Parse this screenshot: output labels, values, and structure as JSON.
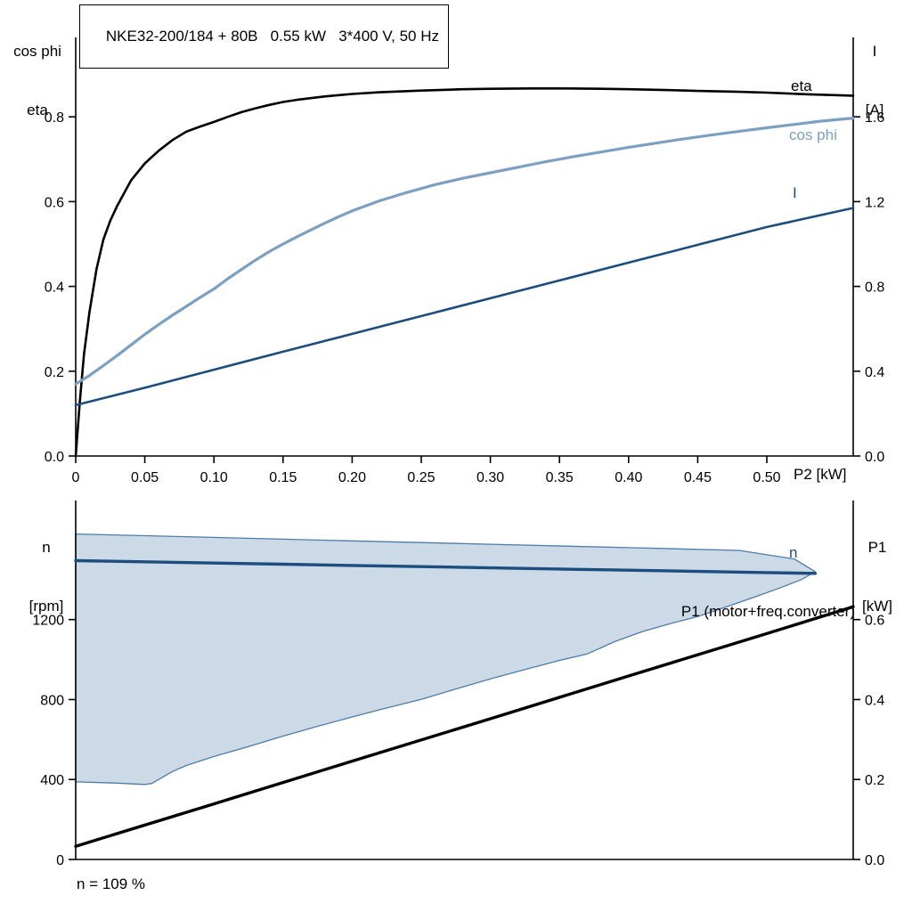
{
  "title_box": {
    "text": "NKE32-200/184 + 80B   0.55 kW   3*400 V, 50 Hz"
  },
  "chart_data": [
    {
      "type": "line",
      "title": "NKE32-200/184 + 80B   0.55 kW   3*400 V, 50 Hz",
      "xlabel": "P2 [kW]",
      "ylabel_left": {
        "line1": "cos phi",
        "line2": "eta"
      },
      "ylabel_right": {
        "line1": "I",
        "line2": "[A]"
      },
      "xlim": [
        0,
        0.5625
      ],
      "xticks": [
        0,
        0.05,
        0.1,
        0.15,
        0.2,
        0.25,
        0.3,
        0.35,
        0.4,
        0.45,
        0.5
      ],
      "xtick_labels": [
        "0",
        "0.05",
        "0.10",
        "0.15",
        "0.20",
        "0.25",
        "0.30",
        "0.35",
        "0.40",
        "0.45",
        "0.50"
      ],
      "ylim_left": [
        0,
        0.96
      ],
      "yticks_left": [
        0.0,
        0.2,
        0.4,
        0.6,
        0.8
      ],
      "ytick_labels_left": [
        "0.0",
        "0.2",
        "0.4",
        "0.6",
        "0.8"
      ],
      "ylim_right": [
        0,
        1.92
      ],
      "yticks_right": [
        0.0,
        0.4,
        0.8,
        1.2,
        1.6
      ],
      "ytick_labels_right": [
        "0.0",
        "0.4",
        "0.8",
        "1.2",
        "1.6"
      ],
      "grid": false,
      "series": [
        {
          "name": "eta",
          "label": "eta",
          "axis": "left",
          "color": "#000000",
          "width": 2.6,
          "points": [
            [
              0,
              0
            ],
            [
              0.003,
              0.13
            ],
            [
              0.006,
              0.24
            ],
            [
              0.01,
              0.34
            ],
            [
              0.015,
              0.44
            ],
            [
              0.02,
              0.51
            ],
            [
              0.025,
              0.555
            ],
            [
              0.03,
              0.59
            ],
            [
              0.04,
              0.65
            ],
            [
              0.05,
              0.69
            ],
            [
              0.06,
              0.72
            ],
            [
              0.07,
              0.745
            ],
            [
              0.08,
              0.765
            ],
            [
              0.09,
              0.777
            ],
            [
              0.1,
              0.788
            ],
            [
              0.11,
              0.8
            ],
            [
              0.12,
              0.811
            ],
            [
              0.13,
              0.82
            ],
            [
              0.14,
              0.828
            ],
            [
              0.15,
              0.835
            ],
            [
              0.16,
              0.84
            ],
            [
              0.18,
              0.848
            ],
            [
              0.2,
              0.854
            ],
            [
              0.22,
              0.858
            ],
            [
              0.25,
              0.862
            ],
            [
              0.28,
              0.865
            ],
            [
              0.3,
              0.866
            ],
            [
              0.33,
              0.867
            ],
            [
              0.35,
              0.867
            ],
            [
              0.38,
              0.866
            ],
            [
              0.4,
              0.865
            ],
            [
              0.43,
              0.863
            ],
            [
              0.45,
              0.861
            ],
            [
              0.48,
              0.859
            ],
            [
              0.5,
              0.857
            ],
            [
              0.53,
              0.853
            ],
            [
              0.5625,
              0.85
            ]
          ]
        },
        {
          "name": "cos phi",
          "label": "cos phi",
          "axis": "left",
          "color": "#7da0c0",
          "width": 3.2,
          "points": [
            [
              0,
              0.17
            ],
            [
              0.01,
              0.19
            ],
            [
              0.02,
              0.213
            ],
            [
              0.03,
              0.237
            ],
            [
              0.04,
              0.262
            ],
            [
              0.05,
              0.287
            ],
            [
              0.06,
              0.31
            ],
            [
              0.07,
              0.332
            ],
            [
              0.08,
              0.353
            ],
            [
              0.09,
              0.374
            ],
            [
              0.1,
              0.394
            ],
            [
              0.11,
              0.418
            ],
            [
              0.12,
              0.44
            ],
            [
              0.13,
              0.462
            ],
            [
              0.14,
              0.482
            ],
            [
              0.15,
              0.5
            ],
            [
              0.16,
              0.517
            ],
            [
              0.17,
              0.533
            ],
            [
              0.18,
              0.549
            ],
            [
              0.19,
              0.564
            ],
            [
              0.2,
              0.578
            ],
            [
              0.22,
              0.602
            ],
            [
              0.24,
              0.622
            ],
            [
              0.26,
              0.64
            ],
            [
              0.28,
              0.655
            ],
            [
              0.3,
              0.668
            ],
            [
              0.32,
              0.681
            ],
            [
              0.34,
              0.694
            ],
            [
              0.36,
              0.706
            ],
            [
              0.38,
              0.717
            ],
            [
              0.4,
              0.728
            ],
            [
              0.42,
              0.738
            ],
            [
              0.44,
              0.748
            ],
            [
              0.46,
              0.757
            ],
            [
              0.48,
              0.766
            ],
            [
              0.5,
              0.774
            ],
            [
              0.52,
              0.782
            ],
            [
              0.54,
              0.79
            ],
            [
              0.5625,
              0.797
            ]
          ]
        },
        {
          "name": "I",
          "label": "I",
          "axis": "right",
          "color": "#1c4d7d",
          "width": 2.6,
          "points": [
            [
              0,
              0.24
            ],
            [
              0.05,
              0.322
            ],
            [
              0.1,
              0.407
            ],
            [
              0.15,
              0.492
            ],
            [
              0.2,
              0.576
            ],
            [
              0.25,
              0.66
            ],
            [
              0.3,
              0.744
            ],
            [
              0.35,
              0.828
            ],
            [
              0.4,
              0.912
            ],
            [
              0.45,
              0.996
            ],
            [
              0.5,
              1.08
            ],
            [
              0.5625,
              1.17
            ]
          ]
        }
      ]
    },
    {
      "type": "line",
      "xlabel": "",
      "ylabel_left": {
        "line1": "n",
        "line2": "[rpm]"
      },
      "ylabel_right": {
        "line1": "P1",
        "line2": "[kW]"
      },
      "note": "n = 109 %",
      "xlim": [
        0,
        0.5625
      ],
      "xticks": [],
      "xtick_labels": [],
      "ylim_left": [
        0,
        1760
      ],
      "yticks_left": [
        0,
        400,
        800,
        1200
      ],
      "ytick_labels_left": [
        "0",
        "400",
        "800",
        "1200"
      ],
      "ylim_right": [
        0,
        0.88
      ],
      "yticks_right": [
        0.0,
        0.2,
        0.4,
        0.6
      ],
      "ytick_labels_right": [
        "0.0",
        "0.2",
        "0.4",
        "0.6"
      ],
      "grid": false,
      "band": {
        "name": "speed-control-range",
        "fill": "#ccdae8",
        "edge": "#4d7ca8",
        "axis": "left",
        "upper": [
          [
            0,
            1628
          ],
          [
            0.1,
            1611
          ],
          [
            0.2,
            1594
          ],
          [
            0.3,
            1577
          ],
          [
            0.4,
            1560
          ],
          [
            0.48,
            1546
          ],
          [
            0.52,
            1503
          ],
          [
            0.535,
            1440
          ]
        ],
        "lower": [
          [
            0,
            388
          ],
          [
            0.03,
            382
          ],
          [
            0.05,
            375
          ],
          [
            0.055,
            380
          ],
          [
            0.07,
            440
          ],
          [
            0.08,
            470
          ],
          [
            0.1,
            515
          ],
          [
            0.125,
            565
          ],
          [
            0.15,
            617
          ],
          [
            0.175,
            666
          ],
          [
            0.2,
            713
          ],
          [
            0.225,
            758
          ],
          [
            0.25,
            801
          ],
          [
            0.275,
            853
          ],
          [
            0.3,
            903
          ],
          [
            0.325,
            950
          ],
          [
            0.35,
            996
          ],
          [
            0.37,
            1028
          ],
          [
            0.39,
            1090
          ],
          [
            0.41,
            1140
          ],
          [
            0.43,
            1180
          ],
          [
            0.45,
            1215
          ],
          [
            0.47,
            1262
          ],
          [
            0.49,
            1310
          ],
          [
            0.51,
            1360
          ],
          [
            0.525,
            1400
          ],
          [
            0.535,
            1440
          ]
        ]
      },
      "series": [
        {
          "name": "n",
          "label": "n",
          "axis": "left",
          "color": "#1c4d7d",
          "width": 3.4,
          "points": [
            [
              0,
              1495
            ],
            [
              0.05,
              1489
            ],
            [
              0.1,
              1483
            ],
            [
              0.15,
              1477
            ],
            [
              0.2,
              1471
            ],
            [
              0.25,
              1465
            ],
            [
              0.3,
              1459
            ],
            [
              0.35,
              1453
            ],
            [
              0.4,
              1447
            ],
            [
              0.45,
              1441
            ],
            [
              0.5,
              1435
            ],
            [
              0.535,
              1431
            ]
          ]
        },
        {
          "name": "P1",
          "label": "P1 (motor+freq.converter)",
          "axis": "right",
          "color": "#000000",
          "width": 3.4,
          "points": [
            [
              0,
              0.033
            ],
            [
              0.1,
              0.139
            ],
            [
              0.2,
              0.246
            ],
            [
              0.3,
              0.352
            ],
            [
              0.4,
              0.459
            ],
            [
              0.5,
              0.565
            ],
            [
              0.5625,
              0.632
            ]
          ]
        }
      ]
    }
  ]
}
